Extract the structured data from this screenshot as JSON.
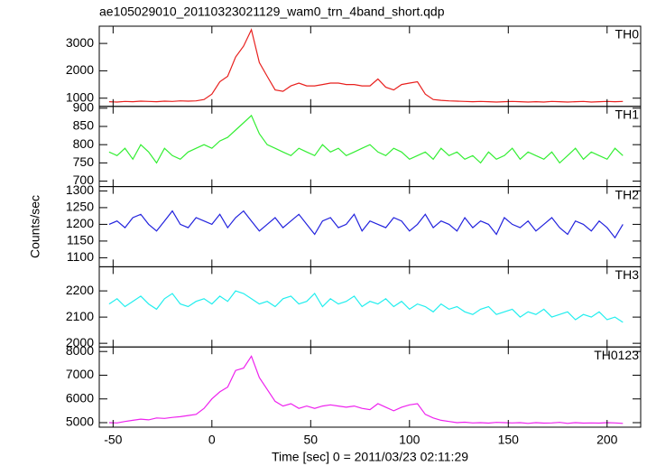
{
  "chart_data": {
    "type": "line",
    "title": "ae105029010_20110323021129_wam0_trn_4band_short.qdp",
    "xlabel": "Time [sec] 0 = 2011/03/23 02:11:29",
    "ylabel": "Counts/sec",
    "xlim": [
      -57,
      217
    ],
    "xticks": [
      -50,
      0,
      50,
      100,
      150,
      200
    ],
    "x": [
      -52,
      -48,
      -44,
      -40,
      -36,
      -32,
      -28,
      -24,
      -20,
      -16,
      -12,
      -8,
      -4,
      0,
      4,
      8,
      12,
      16,
      20,
      24,
      28,
      32,
      36,
      40,
      44,
      48,
      52,
      56,
      60,
      64,
      68,
      72,
      76,
      80,
      84,
      88,
      92,
      96,
      100,
      104,
      108,
      112,
      116,
      120,
      124,
      128,
      132,
      136,
      140,
      144,
      148,
      152,
      156,
      160,
      164,
      168,
      172,
      176,
      180,
      184,
      188,
      192,
      196,
      200,
      204,
      208
    ],
    "series": [
      {
        "name": "TH0",
        "color": "#e8201e",
        "ylim": [
          700,
          3630
        ],
        "yticks": [
          1000,
          2000,
          3000
        ],
        "values": [
          870,
          860,
          880,
          870,
          890,
          880,
          870,
          890,
          880,
          900,
          890,
          900,
          950,
          1150,
          1600,
          1800,
          2500,
          2900,
          3500,
          2300,
          1800,
          1300,
          1250,
          1450,
          1550,
          1450,
          1450,
          1500,
          1550,
          1550,
          1500,
          1500,
          1450,
          1450,
          1700,
          1400,
          1300,
          1500,
          1550,
          1600,
          1150,
          950,
          920,
          900,
          890,
          880,
          870,
          880,
          870,
          860,
          870,
          880,
          870,
          860,
          870,
          860,
          880,
          870,
          860,
          870,
          880,
          860,
          870,
          880,
          870,
          880
        ]
      },
      {
        "name": "TH1",
        "color": "#33ee33",
        "ylim": [
          685,
          905
        ],
        "yticks": [
          700,
          750,
          800,
          850,
          900
        ],
        "values": [
          780,
          770,
          790,
          760,
          800,
          780,
          750,
          790,
          770,
          760,
          780,
          790,
          800,
          790,
          810,
          820,
          840,
          860,
          880,
          830,
          800,
          790,
          780,
          770,
          790,
          780,
          770,
          800,
          780,
          790,
          770,
          780,
          790,
          800,
          780,
          770,
          790,
          780,
          760,
          770,
          780,
          760,
          790,
          770,
          780,
          760,
          770,
          750,
          780,
          760,
          770,
          790,
          760,
          780,
          770,
          760,
          780,
          750,
          770,
          790,
          760,
          780,
          770,
          760,
          790,
          770
        ]
      },
      {
        "name": "TH2",
        "color": "#2222dd",
        "ylim": [
          1073,
          1313
        ],
        "yticks": [
          1100,
          1150,
          1200,
          1250,
          1300
        ],
        "values": [
          1200,
          1210,
          1190,
          1220,
          1230,
          1200,
          1180,
          1210,
          1240,
          1200,
          1190,
          1220,
          1210,
          1200,
          1230,
          1190,
          1220,
          1240,
          1210,
          1180,
          1200,
          1220,
          1190,
          1210,
          1230,
          1200,
          1170,
          1210,
          1220,
          1190,
          1200,
          1230,
          1180,
          1210,
          1200,
          1190,
          1220,
          1210,
          1180,
          1200,
          1230,
          1190,
          1210,
          1200,
          1180,
          1220,
          1190,
          1210,
          1200,
          1170,
          1220,
          1200,
          1190,
          1210,
          1180,
          1200,
          1220,
          1190,
          1170,
          1210,
          1200,
          1180,
          1210,
          1190,
          1160,
          1200
        ]
      },
      {
        "name": "TH3",
        "color": "#22eeee",
        "ylim": [
          1986,
          2292
        ],
        "yticks": [
          2000,
          2100,
          2200
        ],
        "values": [
          2150,
          2170,
          2140,
          2160,
          2180,
          2150,
          2130,
          2170,
          2190,
          2150,
          2140,
          2160,
          2170,
          2150,
          2180,
          2160,
          2200,
          2190,
          2170,
          2150,
          2160,
          2140,
          2170,
          2180,
          2150,
          2160,
          2190,
          2140,
          2170,
          2150,
          2160,
          2180,
          2140,
          2160,
          2150,
          2170,
          2140,
          2160,
          2130,
          2150,
          2140,
          2120,
          2150,
          2130,
          2140,
          2120,
          2110,
          2130,
          2140,
          2110,
          2120,
          2130,
          2100,
          2120,
          2110,
          2130,
          2100,
          2110,
          2120,
          2090,
          2110,
          2100,
          2120,
          2090,
          2100,
          2080
        ]
      },
      {
        "name": "TH0123",
        "color": "#ee22ee",
        "ylim": [
          4810,
          8190
        ],
        "yticks": [
          5000,
          6000,
          7000,
          8000
        ],
        "values": [
          5000,
          4990,
          5050,
          5100,
          5150,
          5120,
          5200,
          5180,
          5220,
          5250,
          5300,
          5350,
          5600,
          6000,
          6300,
          6500,
          7200,
          7300,
          7800,
          6900,
          6400,
          5900,
          5700,
          5800,
          5600,
          5700,
          5600,
          5700,
          5750,
          5700,
          5650,
          5700,
          5600,
          5550,
          5800,
          5650,
          5500,
          5650,
          5750,
          5800,
          5350,
          5200,
          5100,
          5050,
          5000,
          5020,
          4990,
          5000,
          4980,
          5010,
          5000,
          4990,
          5000,
          4970,
          5000,
          4980,
          4990,
          5010,
          4970,
          5000,
          4980,
          4990,
          4980,
          5000,
          4990,
          4970
        ]
      }
    ]
  }
}
